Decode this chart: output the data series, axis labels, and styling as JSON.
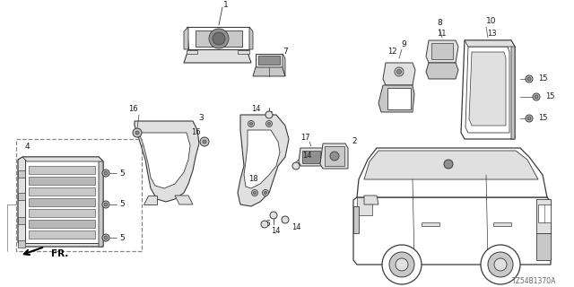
{
  "bg_color": "#ffffff",
  "diagram_code": "TZ54B1370A",
  "line_color": "#3a3a3a",
  "text_color": "#1a1a1a",
  "gray_fill": "#c8c8c8",
  "light_gray": "#e0e0e0",
  "dark_gray": "#909090"
}
